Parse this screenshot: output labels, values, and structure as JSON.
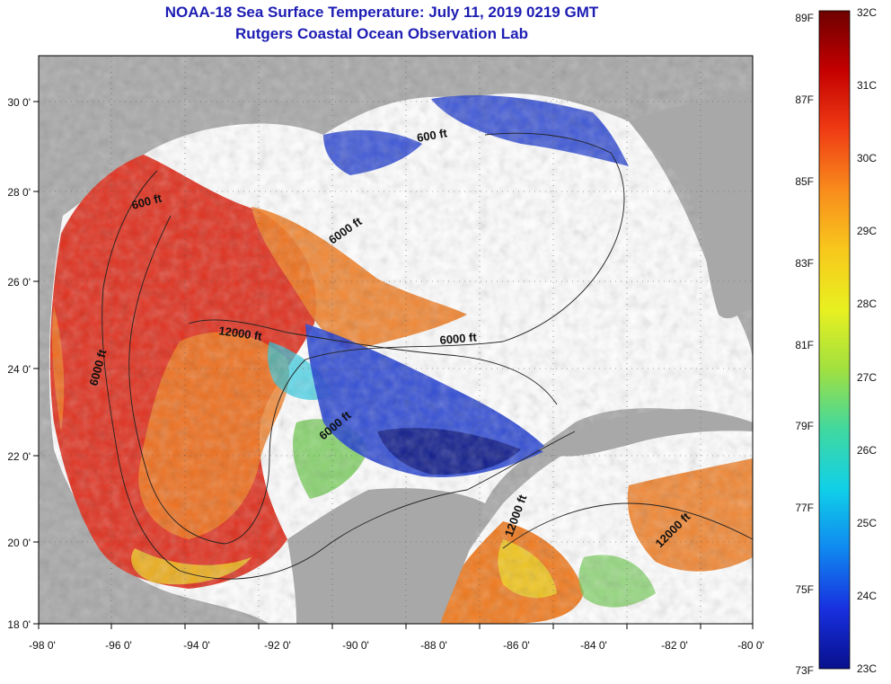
{
  "header": {
    "title": "NOAA-18 Sea Surface Temperature:  July 11, 2019 0219 GMT",
    "subtitle": "Rutgers Coastal Ocean Observation Lab"
  },
  "map": {
    "lon_ticks": [
      "-98 0'",
      "-96 0'",
      "-94 0'",
      "-92 0'",
      "-90 0'",
      "-88 0'",
      "-86 0'",
      "-84 0'",
      "-82 0'",
      "-80 0'"
    ],
    "lat_ticks": [
      "18 0'",
      "20 0'",
      "22 0'",
      "24 0'",
      "26 0'",
      "28 0'",
      "30 0'"
    ],
    "depth_labels": [
      "600 ft",
      "600 ft",
      "6000 ft",
      "12000 ft",
      "6000 ft",
      "6000 ft",
      "6000 ft",
      "12000 ft",
      "12000 ft"
    ],
    "colors": {
      "land": "#a8a8a8",
      "cloud": "#ffffff",
      "warm_red": "#e0301e",
      "orange": "#f07a1e",
      "yellow": "#f0d81e",
      "green": "#6ac84a",
      "cyan": "#20c8e0",
      "blue": "#1e3cd0",
      "navy": "#0a1480"
    }
  },
  "colorbar": {
    "fahrenheit_labels": [
      "89F",
      "87F",
      "85F",
      "83F",
      "81F",
      "79F",
      "77F",
      "75F",
      "73F"
    ],
    "celsius_labels": [
      "32C",
      "31C",
      "30C",
      "29C",
      "28C",
      "27C",
      "26C",
      "25C",
      "24C",
      "23C"
    ],
    "gradient_colors": [
      "#6e0000",
      "#c40000",
      "#f03c14",
      "#f88c1c",
      "#f8c81c",
      "#e8f020",
      "#a0e040",
      "#40d8a0",
      "#10d0e8",
      "#1088f0",
      "#1830e0",
      "#08108c"
    ]
  }
}
